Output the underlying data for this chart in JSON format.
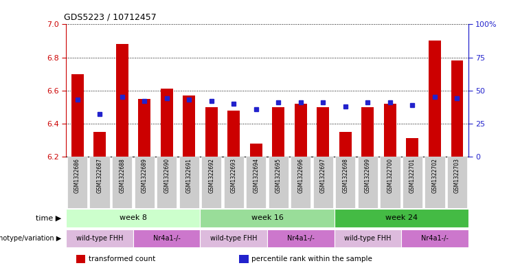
{
  "title": "GDS5223 / 10712457",
  "samples": [
    "GSM1322686",
    "GSM1322687",
    "GSM1322688",
    "GSM1322689",
    "GSM1322690",
    "GSM1322691",
    "GSM1322692",
    "GSM1322693",
    "GSM1322694",
    "GSM1322695",
    "GSM1322696",
    "GSM1322697",
    "GSM1322698",
    "GSM1322699",
    "GSM1322700",
    "GSM1322701",
    "GSM1322702",
    "GSM1322703"
  ],
  "transformed_count": [
    6.7,
    6.35,
    6.88,
    6.55,
    6.61,
    6.57,
    6.5,
    6.48,
    6.28,
    6.5,
    6.52,
    6.5,
    6.35,
    6.5,
    6.52,
    6.31,
    6.9,
    6.78
  ],
  "percentile_rank": [
    43,
    32,
    45,
    42,
    44,
    43,
    42,
    40,
    36,
    41,
    41,
    41,
    38,
    41,
    41,
    39,
    45,
    44
  ],
  "ylim_left": [
    6.2,
    7.0
  ],
  "ylim_right": [
    0,
    100
  ],
  "yticks_left": [
    6.2,
    6.4,
    6.6,
    6.8,
    7.0
  ],
  "yticks_right": [
    0,
    25,
    50,
    75,
    100
  ],
  "bar_color": "#cc0000",
  "dot_color": "#2222cc",
  "time_groups": [
    {
      "label": "week 8",
      "start": 0,
      "end": 6,
      "color": "#ccffcc"
    },
    {
      "label": "week 16",
      "start": 6,
      "end": 12,
      "color": "#99dd99"
    },
    {
      "label": "week 24",
      "start": 12,
      "end": 18,
      "color": "#44bb44"
    }
  ],
  "genotype_groups": [
    {
      "label": "wild-type FHH",
      "start": 0,
      "end": 3,
      "color": "#ddbbdd"
    },
    {
      "label": "Nr4a1-/-",
      "start": 3,
      "end": 6,
      "color": "#cc77cc"
    },
    {
      "label": "wild-type FHH",
      "start": 6,
      "end": 9,
      "color": "#ddbbdd"
    },
    {
      "label": "Nr4a1-/-",
      "start": 9,
      "end": 12,
      "color": "#cc77cc"
    },
    {
      "label": "wild-type FHH",
      "start": 12,
      "end": 15,
      "color": "#ddbbdd"
    },
    {
      "label": "Nr4a1-/-",
      "start": 15,
      "end": 18,
      "color": "#cc77cc"
    }
  ],
  "tick_color_left": "#cc0000",
  "tick_color_right": "#2222cc",
  "label_bg_color": "#cccccc",
  "legend": [
    {
      "label": "transformed count",
      "color": "#cc0000"
    },
    {
      "label": "percentile rank within the sample",
      "color": "#2222cc"
    }
  ]
}
